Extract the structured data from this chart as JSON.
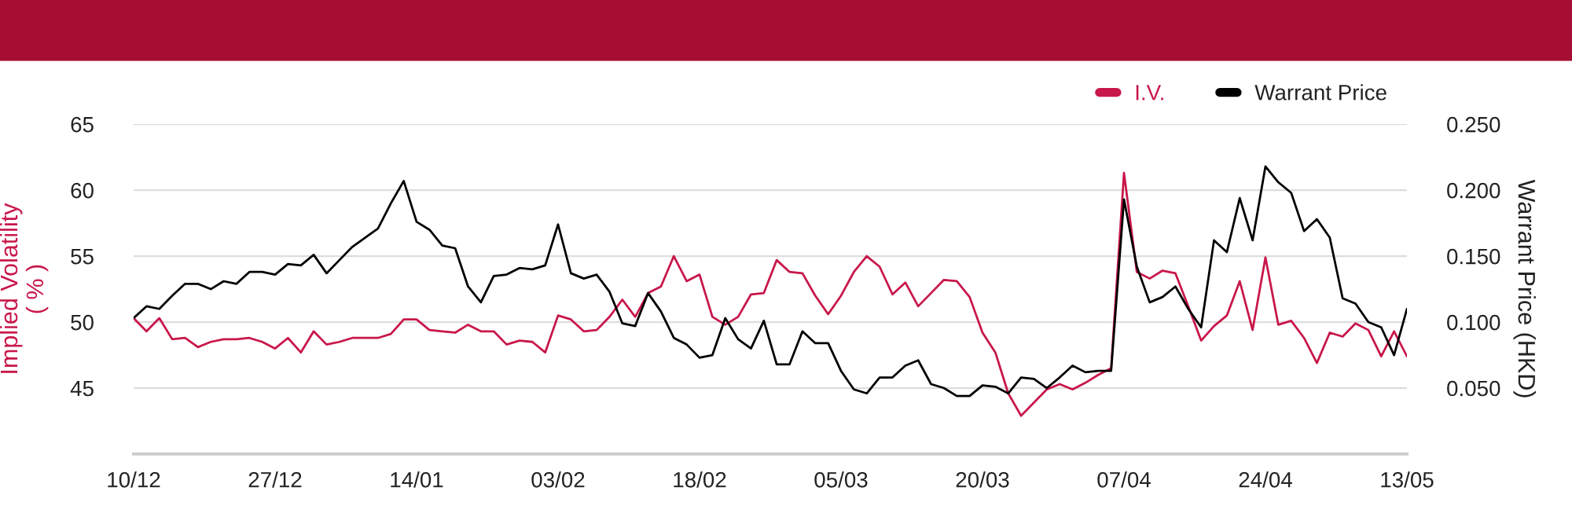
{
  "chart_data": {
    "type": "line",
    "categories": [
      "10/12",
      null,
      null,
      null,
      null,
      null,
      null,
      null,
      null,
      null,
      null,
      "27/12",
      null,
      null,
      null,
      null,
      null,
      null,
      null,
      null,
      null,
      null,
      "14/01",
      null,
      null,
      null,
      null,
      null,
      null,
      null,
      null,
      null,
      null,
      "03/02",
      null,
      null,
      null,
      null,
      null,
      null,
      null,
      null,
      null,
      null,
      "18/02",
      null,
      null,
      null,
      null,
      null,
      null,
      null,
      null,
      null,
      null,
      "05/03",
      null,
      null,
      null,
      null,
      null,
      null,
      null,
      null,
      null,
      null,
      "20/03",
      null,
      null,
      null,
      null,
      null,
      null,
      null,
      null,
      null,
      null,
      "07/04",
      null,
      null,
      null,
      null,
      null,
      null,
      null,
      null,
      null,
      null,
      "24/04",
      null,
      null,
      null,
      null,
      null,
      null,
      null,
      null,
      null,
      null,
      "13/05"
    ],
    "series": [
      {
        "name": "I.V.",
        "color": "#c8174a",
        "values": [
          50.3,
          49.3,
          50.3,
          48.7,
          48.8,
          48.1,
          48.5,
          48.7,
          48.7,
          48.8,
          48.5,
          48.0,
          48.8,
          47.7,
          49.3,
          48.3,
          48.5,
          48.8,
          48.8,
          48.8,
          49.1,
          50.2,
          50.2,
          49.4,
          49.3,
          49.2,
          49.8,
          49.3,
          49.3,
          48.3,
          48.6,
          48.5,
          47.7,
          50.5,
          50.2,
          49.3,
          49.4,
          50.4,
          51.7,
          50.4,
          52.2,
          52.7,
          55.0,
          53.1,
          53.6,
          50.4,
          49.8,
          50.4,
          52.1,
          52.2,
          54.7,
          53.8,
          53.7,
          52.0,
          50.6,
          52.0,
          53.8,
          55.0,
          54.2,
          52.1,
          53.0,
          51.2,
          52.2,
          53.2,
          53.1,
          51.9,
          49.2,
          47.7,
          44.6,
          42.9,
          43.9,
          44.9,
          45.3,
          44.9,
          45.4,
          46.0,
          46.5,
          61.3,
          53.8,
          53.3,
          53.9,
          53.7,
          51.2,
          48.6,
          49.7,
          50.5,
          53.1,
          49.4,
          54.9,
          49.8,
          50.1,
          48.8,
          46.9,
          49.2,
          48.9,
          49.9,
          49.4,
          47.4,
          49.3,
          47.4
        ]
      },
      {
        "name": "Warrant Price",
        "color": "#000000",
        "axis": "y2",
        "values": [
          0.103,
          0.112,
          0.11,
          0.12,
          0.129,
          0.129,
          0.125,
          0.131,
          0.129,
          0.138,
          0.138,
          0.136,
          0.144,
          0.143,
          0.151,
          0.137,
          0.147,
          0.157,
          0.164,
          0.171,
          0.19,
          0.207,
          0.176,
          0.17,
          0.158,
          0.156,
          0.127,
          0.115,
          0.135,
          0.136,
          0.141,
          0.14,
          0.143,
          0.174,
          0.137,
          0.133,
          0.136,
          0.123,
          0.099,
          0.097,
          0.122,
          0.108,
          0.088,
          0.083,
          0.073,
          0.075,
          0.103,
          0.087,
          0.08,
          0.101,
          0.068,
          0.068,
          0.093,
          0.084,
          0.084,
          0.063,
          0.049,
          0.046,
          0.058,
          0.058,
          0.067,
          0.071,
          0.053,
          0.05,
          0.044,
          0.044,
          0.052,
          0.051,
          0.046,
          0.058,
          0.057,
          0.05,
          0.058,
          0.067,
          0.062,
          0.063,
          0.063,
          0.193,
          0.142,
          0.115,
          0.119,
          0.127,
          0.11,
          0.096,
          0.162,
          0.153,
          0.194,
          0.162,
          0.218,
          0.206,
          0.198,
          0.169,
          0.178,
          0.164,
          0.118,
          0.114,
          0.1,
          0.096,
          0.075,
          0.11
        ]
      }
    ],
    "ylabel": "Implied Volatility\n( % )",
    "y2label": "Warrant Price (HKD)",
    "ylim": [
      40,
      65
    ],
    "yticks": [
      45,
      50,
      55,
      60,
      65
    ],
    "y2lim": [
      0,
      0.25
    ],
    "y2ticks": [
      {
        "value": 0.05,
        "label": "0.050"
      },
      {
        "value": 0.1,
        "label": "0.100"
      },
      {
        "value": 0.15,
        "label": "0.150"
      },
      {
        "value": 0.2,
        "label": "0.200"
      },
      {
        "value": 0.25,
        "label": "0.250"
      }
    ],
    "grid": "y",
    "legend": "top right"
  }
}
